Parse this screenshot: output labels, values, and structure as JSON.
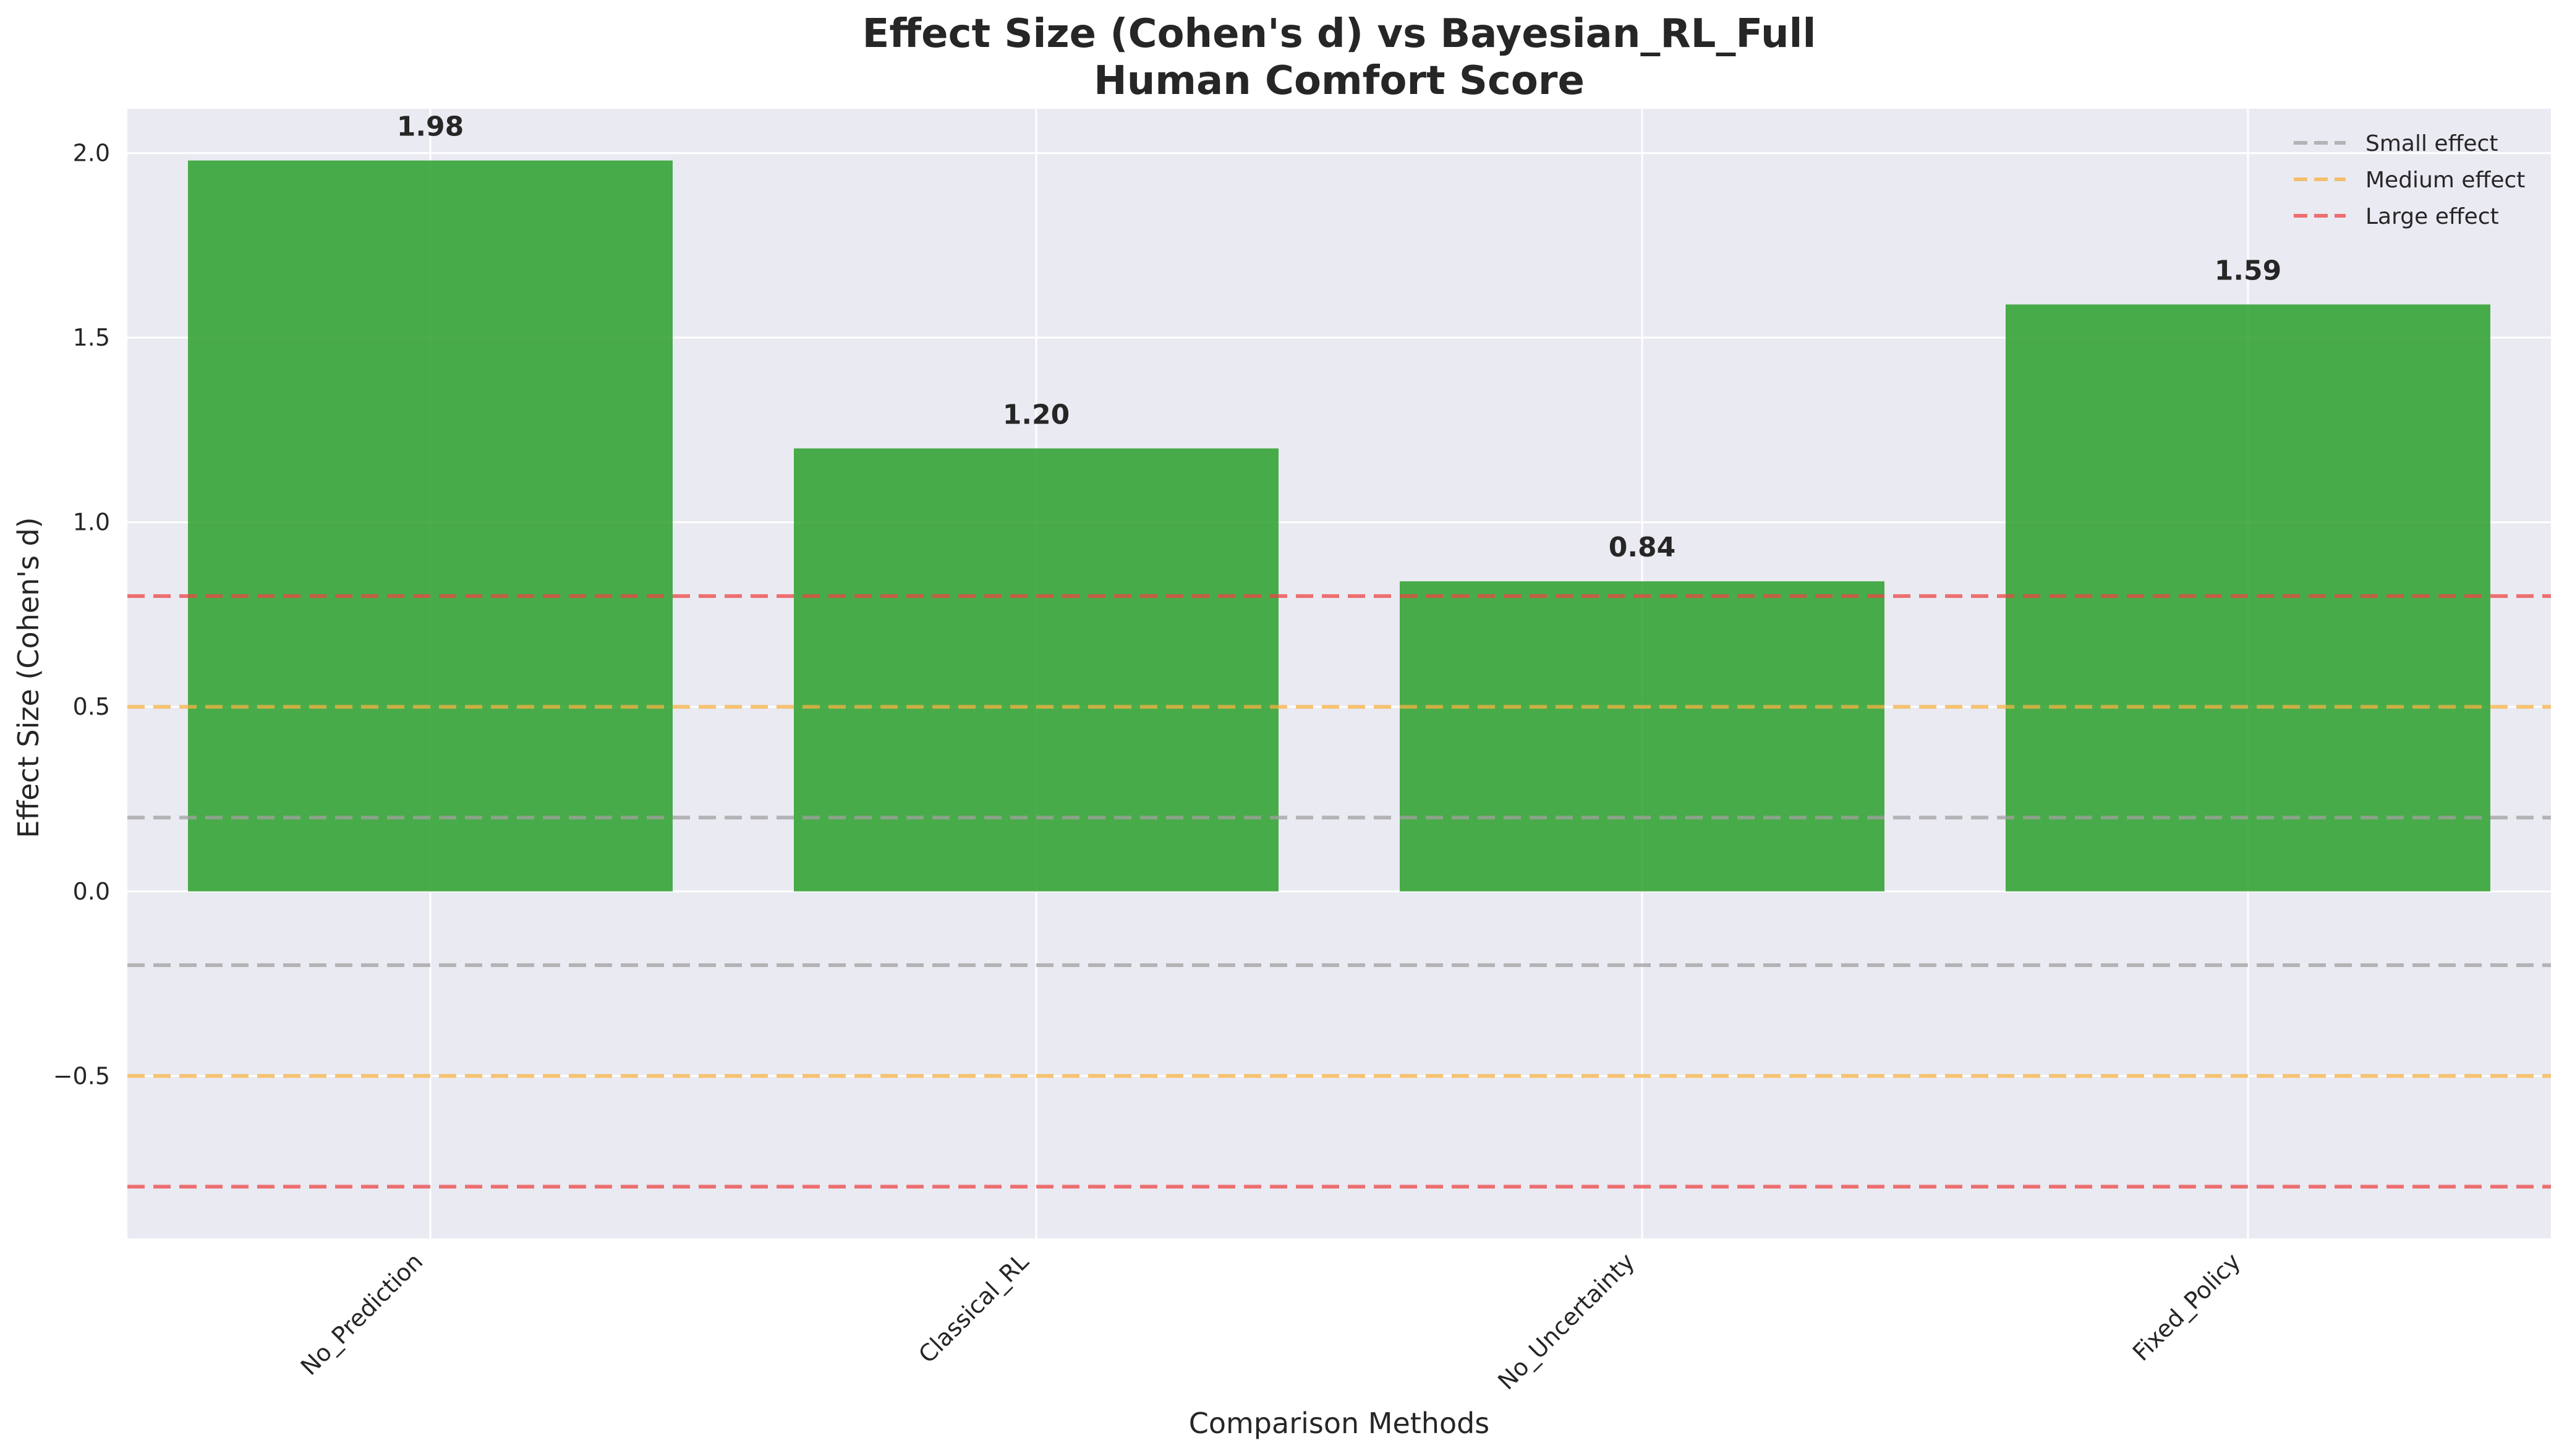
{
  "chart_data": {
    "type": "bar",
    "title": "Effect Size (Cohen's d) vs Bayesian_RL_Full",
    "subtitle": "Human Comfort Score",
    "xlabel": "Comparison Methods",
    "ylabel": "Effect Size (Cohen's d)",
    "categories": [
      "No_Prediction",
      "Classical_RL",
      "No_Uncertainty",
      "Fixed_Policy"
    ],
    "values": [
      1.98,
      1.2,
      0.84,
      1.59
    ],
    "value_labels": [
      "1.98",
      "1.20",
      "0.84",
      "1.59"
    ],
    "ylim": [
      -0.94,
      2.12
    ],
    "yticks": [
      -0.5,
      0.0,
      0.5,
      1.0,
      1.5,
      2.0
    ],
    "ytick_labels": [
      "−0.5",
      "0.0",
      "0.5",
      "1.0",
      "1.5",
      "2.0"
    ],
    "bar_color": "#2ca02c",
    "grid": true,
    "legend_position": "top-right",
    "reference_lines": [
      {
        "name": "Small effect",
        "values": [
          0.2,
          -0.2
        ],
        "color": "#a0a0a0"
      },
      {
        "name": "Medium effect",
        "values": [
          0.5,
          -0.5
        ],
        "color": "#f5b041"
      },
      {
        "name": "Large effect",
        "values": [
          0.8,
          -0.8
        ],
        "color": "#ee4444"
      }
    ]
  }
}
